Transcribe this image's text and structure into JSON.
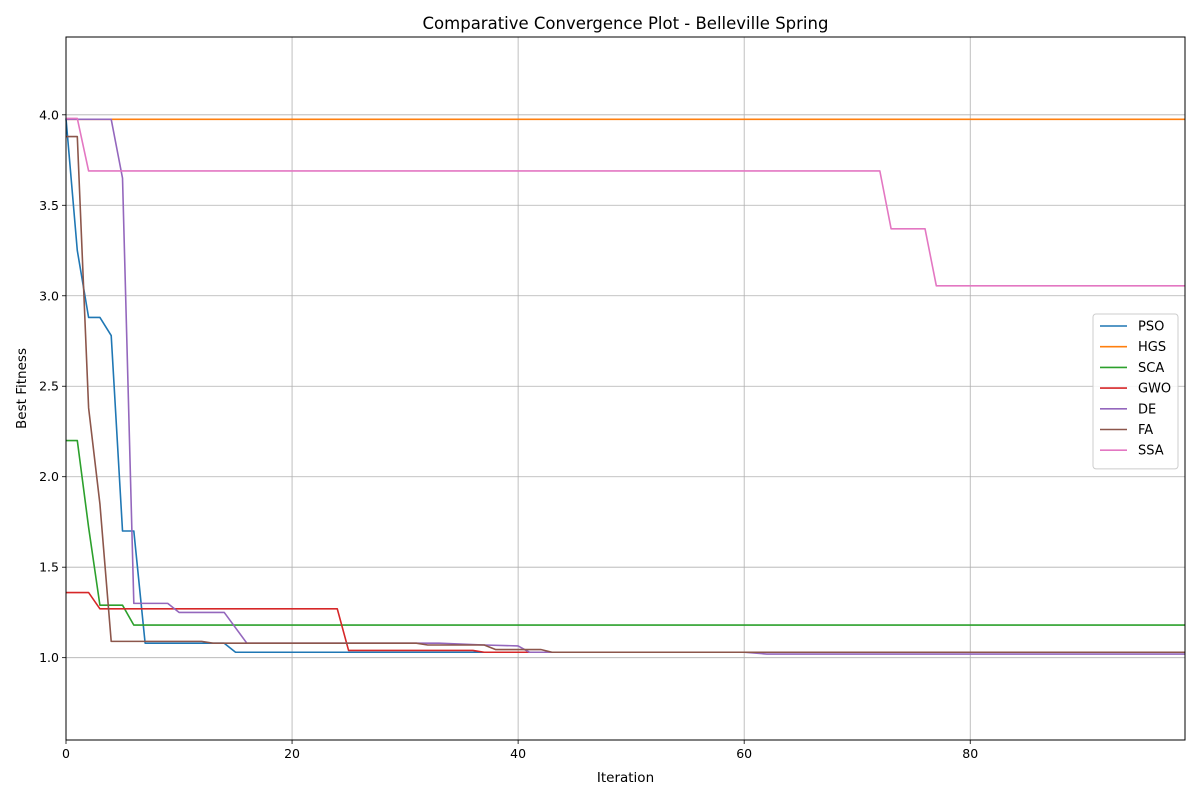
{
  "chart_data": {
    "type": "line",
    "title": "Comparative Convergence Plot - Belleville Spring",
    "xlabel": "Iteration",
    "ylabel": "Best Fitness",
    "xlim": [
      0,
      99
    ],
    "ylim": [
      0.545,
      4.43
    ],
    "xticks": [
      0,
      20,
      40,
      60,
      80
    ],
    "yticks": [
      1.0,
      1.5,
      2.0,
      2.5,
      3.0,
      3.5,
      4.0
    ],
    "xtick_labels": [
      "0",
      "20",
      "40",
      "60",
      "80"
    ],
    "ytick_labels": [
      "1.0",
      "1.5",
      "2.0",
      "2.5",
      "3.0",
      "3.5",
      "4.0"
    ],
    "grid": true,
    "legend_position": "center-right",
    "series": [
      {
        "name": "PSO",
        "color": "#1f77b4",
        "points": [
          [
            0,
            3.98
          ],
          [
            1,
            3.25
          ],
          [
            2,
            2.88
          ],
          [
            3,
            2.88
          ],
          [
            4,
            2.78
          ],
          [
            5,
            1.7
          ],
          [
            6,
            1.7
          ],
          [
            7,
            1.08
          ],
          [
            14,
            1.08
          ],
          [
            15,
            1.03
          ],
          [
            99,
            1.03
          ]
        ]
      },
      {
        "name": "HGS",
        "color": "#ff7f0e",
        "points": [
          [
            0,
            3.975
          ],
          [
            99,
            3.975
          ]
        ]
      },
      {
        "name": "SCA",
        "color": "#2ca02c",
        "points": [
          [
            0,
            2.2
          ],
          [
            1,
            2.2
          ],
          [
            2,
            1.72
          ],
          [
            3,
            1.29
          ],
          [
            5,
            1.29
          ],
          [
            6,
            1.18
          ],
          [
            99,
            1.18
          ]
        ]
      },
      {
        "name": "GWO",
        "color": "#d62728",
        "points": [
          [
            0,
            1.36
          ],
          [
            2,
            1.36
          ],
          [
            3,
            1.27
          ],
          [
            24,
            1.27
          ],
          [
            25,
            1.04
          ],
          [
            36,
            1.04
          ],
          [
            37,
            1.03
          ],
          [
            99,
            1.03
          ]
        ]
      },
      {
        "name": "DE",
        "color": "#9467bd",
        "points": [
          [
            0,
            3.975
          ],
          [
            4,
            3.975
          ],
          [
            5,
            3.65
          ],
          [
            6,
            1.3
          ],
          [
            9,
            1.3
          ],
          [
            10,
            1.25
          ],
          [
            14,
            1.25
          ],
          [
            16,
            1.08
          ],
          [
            33,
            1.08
          ],
          [
            37,
            1.07
          ],
          [
            40,
            1.065
          ],
          [
            41,
            1.03
          ],
          [
            60,
            1.03
          ],
          [
            62,
            1.02
          ],
          [
            99,
            1.02
          ]
        ]
      },
      {
        "name": "FA",
        "color": "#8c564b",
        "points": [
          [
            0,
            3.88
          ],
          [
            1,
            3.88
          ],
          [
            2,
            2.38
          ],
          [
            3,
            1.85
          ],
          [
            4,
            1.09
          ],
          [
            12,
            1.09
          ],
          [
            13,
            1.08
          ],
          [
            31,
            1.08
          ],
          [
            32,
            1.07
          ],
          [
            37,
            1.07
          ],
          [
            38,
            1.045
          ],
          [
            42,
            1.045
          ],
          [
            43,
            1.03
          ],
          [
            99,
            1.03
          ]
        ]
      },
      {
        "name": "SSA",
        "color": "#e377c2",
        "points": [
          [
            0,
            3.98
          ],
          [
            1,
            3.98
          ],
          [
            2,
            3.69
          ],
          [
            72,
            3.69
          ],
          [
            73,
            3.37
          ],
          [
            76,
            3.37
          ],
          [
            77,
            3.055
          ],
          [
            99,
            3.055
          ]
        ]
      }
    ]
  }
}
